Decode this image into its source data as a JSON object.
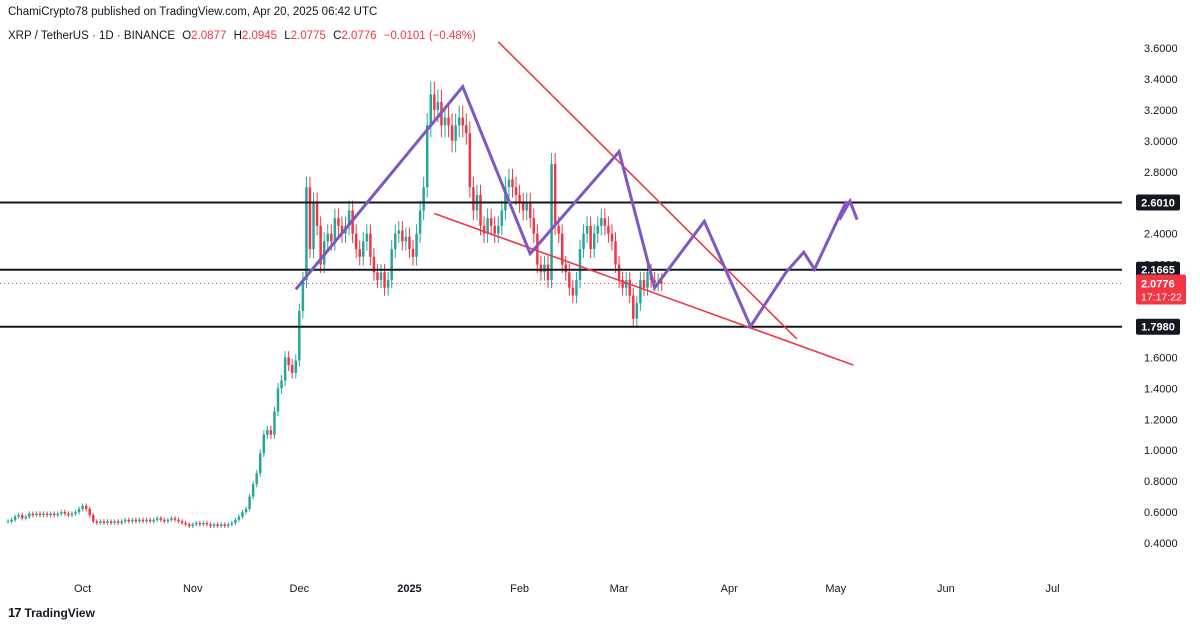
{
  "header": {
    "byline": "ChamiCrypto78 published on TradingView.com, Apr 20, 2025 06:42 UTC"
  },
  "legend": {
    "symbol": "XRP / TetherUS · 1D · BINANCE",
    "open_label": "O",
    "open": "2.0877",
    "high_label": "H",
    "high": "2.0945",
    "low_label": "L",
    "low": "2.0775",
    "close_label": "C",
    "close": "2.0776",
    "change": "−0.0101 (−0.48%)"
  },
  "footer": {
    "brand": "TradingView",
    "logo": "17"
  },
  "colors": {
    "up": "#26a69a",
    "down": "#f23645",
    "pattern": "#7e57c2",
    "wedge": "#f23645",
    "level": "#131722",
    "axis_text": "#131722"
  },
  "chart_data": {
    "type": "candlestick",
    "y_axis": {
      "ticks": [
        "3.6000",
        "3.4000",
        "3.2000",
        "3.0000",
        "2.8000",
        "2.6000",
        "2.4000",
        "2.2000",
        "2.0000",
        "1.8000",
        "1.6000",
        "1.4000",
        "1.2000",
        "1.0000",
        "0.8000",
        "0.6000",
        "0.4000"
      ],
      "range": [
        0.3,
        3.68
      ],
      "position": "right"
    },
    "x_axis": {
      "ticks": [
        {
          "label": "Oct",
          "date": "2024-10-01"
        },
        {
          "label": "Nov",
          "date": "2024-11-01"
        },
        {
          "label": "Dec",
          "date": "2024-12-01"
        },
        {
          "label": "2025",
          "date": "2025-01-01"
        },
        {
          "label": "Feb",
          "date": "2025-02-01"
        },
        {
          "label": "Mar",
          "date": "2025-03-01"
        },
        {
          "label": "Apr",
          "date": "2025-04-01"
        },
        {
          "label": "May",
          "date": "2025-05-01"
        },
        {
          "label": "Jun",
          "date": "2025-06-01"
        },
        {
          "label": "Jul",
          "date": "2025-07-01"
        }
      ],
      "range": [
        "2024-09-10",
        "2025-07-20"
      ]
    },
    "price_levels": [
      {
        "label": "2.6010",
        "value": 2.601
      },
      {
        "label": "2.1665",
        "value": 2.1665
      },
      {
        "label": "1.7980",
        "value": 1.798
      }
    ],
    "current_price": {
      "label": "2.0776",
      "value": 2.0776,
      "countdown": "17:17:22"
    },
    "wedge_lines": [
      {
        "from": {
          "date": "2025-01-26",
          "price": 3.64
        },
        "to": {
          "date": "2025-04-20",
          "price": 1.72
        }
      },
      {
        "from": {
          "date": "2025-01-08",
          "price": 2.53
        },
        "to": {
          "date": "2025-05-06",
          "price": 1.55
        }
      }
    ],
    "pattern_path": [
      {
        "date": "2024-11-30",
        "price": 2.04
      },
      {
        "date": "2025-01-16",
        "price": 3.35
      },
      {
        "date": "2025-02-04",
        "price": 2.27
      },
      {
        "date": "2025-03-01",
        "price": 2.93
      },
      {
        "date": "2025-03-11",
        "price": 2.05
      },
      {
        "date": "2025-03-25",
        "price": 2.48
      },
      {
        "date": "2025-04-07",
        "price": 1.8
      },
      {
        "date": "2025-04-17",
        "price": 2.15
      },
      {
        "date": "2025-04-22",
        "price": 2.28
      },
      {
        "date": "2025-04-25",
        "price": 2.17
      },
      {
        "date": "2025-05-04",
        "price": 2.61
      }
    ],
    "pattern_arrow_head": [
      {
        "date": "2025-05-02",
        "price": 2.49
      },
      {
        "date": "2025-05-05",
        "price": 2.61
      },
      {
        "date": "2025-05-07",
        "price": 2.49
      }
    ],
    "close_series_start": "2024-09-10",
    "closes": [
      0.54,
      0.55,
      0.57,
      0.58,
      0.56,
      0.57,
      0.59,
      0.58,
      0.59,
      0.58,
      0.59,
      0.58,
      0.59,
      0.58,
      0.59,
      0.6,
      0.59,
      0.58,
      0.59,
      0.6,
      0.62,
      0.64,
      0.62,
      0.58,
      0.54,
      0.53,
      0.54,
      0.53,
      0.54,
      0.53,
      0.54,
      0.53,
      0.54,
      0.55,
      0.54,
      0.55,
      0.54,
      0.55,
      0.54,
      0.55,
      0.54,
      0.55,
      0.56,
      0.55,
      0.54,
      0.55,
      0.56,
      0.55,
      0.54,
      0.53,
      0.52,
      0.51,
      0.52,
      0.53,
      0.52,
      0.53,
      0.52,
      0.51,
      0.52,
      0.51,
      0.52,
      0.51,
      0.52,
      0.53,
      0.55,
      0.57,
      0.6,
      0.62,
      0.7,
      0.78,
      0.85,
      0.98,
      1.1,
      1.13,
      1.1,
      1.25,
      1.4,
      1.45,
      1.6,
      1.55,
      1.5,
      1.58,
      1.9,
      2.1,
      2.7,
      2.3,
      2.6,
      2.45,
      2.2,
      2.35,
      2.4,
      2.35,
      2.5,
      2.45,
      2.4,
      2.45,
      2.55,
      2.4,
      2.3,
      2.25,
      2.35,
      2.4,
      2.25,
      2.15,
      2.1,
      2.15,
      2.05,
      2.1,
      2.3,
      2.4,
      2.42,
      2.35,
      2.38,
      2.3,
      2.25,
      2.4,
      2.55,
      2.7,
      3.1,
      3.3,
      3.2,
      3.25,
      3.1,
      3.15,
      3.1,
      3.0,
      3.1,
      3.15,
      3.1,
      3.05,
      2.7,
      2.55,
      2.65,
      2.45,
      2.4,
      2.5,
      2.45,
      2.4,
      2.45,
      2.55,
      2.7,
      2.75,
      2.7,
      2.65,
      2.6,
      2.55,
      2.6,
      2.5,
      2.4,
      2.2,
      2.15,
      2.2,
      2.1,
      2.85,
      2.45,
      2.4,
      2.2,
      2.15,
      2.05,
      2.0,
      2.1,
      2.3,
      2.4,
      2.45,
      2.3,
      2.4,
      2.45,
      2.5,
      2.45,
      2.4,
      2.35,
      2.2,
      2.1,
      2.05,
      2.1,
      2.0,
      1.85,
      1.95,
      2.1,
      2.05,
      2.15,
      2.1,
      2.08,
      2.09,
      2.08
    ]
  }
}
